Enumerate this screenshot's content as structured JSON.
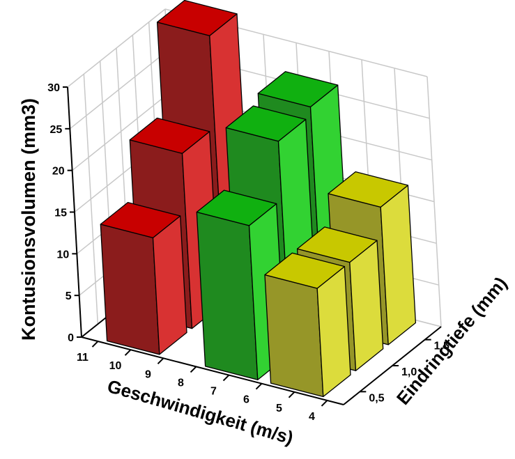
{
  "chart_data": {
    "type": "bar3d",
    "xlabel": "Geschwindigkeit (m/s)",
    "ylabel": "Eindringtiefe (mm)",
    "zlabel": "Kontusionsvolumen (mm3)",
    "x_ticks": [
      "11",
      "10",
      "9",
      "8",
      "7",
      "6",
      "5",
      "4"
    ],
    "y_ticks": [
      "0,5",
      "1,0",
      "1,5"
    ],
    "z_ticks": [
      "0",
      "5",
      "10",
      "15",
      "20",
      "25",
      "30"
    ],
    "zlim": [
      0,
      30
    ],
    "grid": true,
    "bars": [
      {
        "velocity": 10,
        "depth": "0,5",
        "value": 14,
        "color": "red"
      },
      {
        "velocity": 10,
        "depth": "1,0",
        "value": 21,
        "color": "red"
      },
      {
        "velocity": 10,
        "depth": "1,5",
        "value": 32,
        "color": "red"
      },
      {
        "velocity": 7,
        "depth": "0,5",
        "value": 18.5,
        "color": "green"
      },
      {
        "velocity": 7,
        "depth": "1,0",
        "value": 25.5,
        "color": "green"
      },
      {
        "velocity": 7,
        "depth": "1,5",
        "value": 26.5,
        "color": "green"
      },
      {
        "velocity": 5,
        "depth": "0,5",
        "value": 13,
        "color": "yellow"
      },
      {
        "velocity": 5,
        "depth": "1,0",
        "value": 13,
        "color": "yellow"
      },
      {
        "velocity": 5,
        "depth": "1,5",
        "value": 16.5,
        "color": "yellow"
      }
    ],
    "colors": {
      "red": {
        "front": "#8b1c1c",
        "side": "#d83232",
        "top": "#c80000"
      },
      "green": {
        "front": "#1f8a1f",
        "side": "#32d232",
        "top": "#10b010"
      },
      "yellow": {
        "front": "#969628",
        "side": "#dcdc3c",
        "top": "#c8c800"
      }
    }
  }
}
